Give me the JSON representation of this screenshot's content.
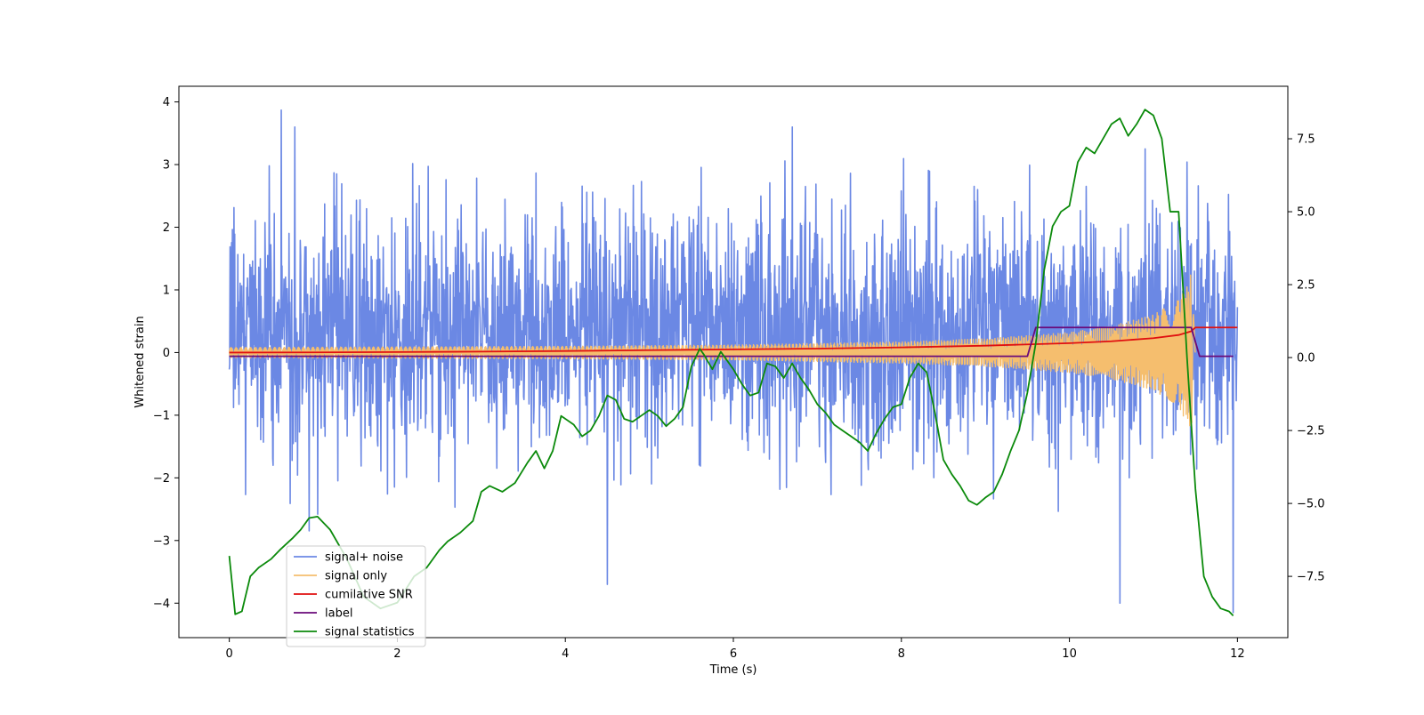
{
  "chart_data": {
    "type": "line",
    "title": "",
    "xlabel": "Time (s)",
    "ylabel": "Whitened strain",
    "y2label": "",
    "xlim": [
      -0.6,
      12.6
    ],
    "ylim": [
      -4.55,
      4.25
    ],
    "y2lim": [
      -9.6,
      9.3
    ],
    "xticks": [
      0,
      2,
      4,
      6,
      8,
      10,
      12
    ],
    "yticks": [
      -4,
      -3,
      -2,
      -1,
      0,
      1,
      2,
      3,
      4
    ],
    "y2ticks": [
      -7.5,
      -5.0,
      -2.5,
      0.0,
      2.5,
      5.0,
      7.5
    ],
    "grid": false,
    "legend_position": "lower-left",
    "series": [
      {
        "name": "signal+ noise",
        "color": "#6b88e4",
        "axis": "left",
        "kind": "noise",
        "x_range": [
          0,
          12
        ],
        "noise_std": 0.95,
        "noise_mean": 0.35,
        "notable_peaks": [
          [
            0.62,
            3.87
          ],
          [
            0.78,
            3.6
          ],
          [
            6.7,
            3.6
          ],
          [
            10.9,
            3.25
          ],
          [
            4.5,
            -3.7
          ],
          [
            10.6,
            -4.0
          ],
          [
            11.95,
            -4.15
          ]
        ]
      },
      {
        "name": "signal only",
        "color": "#f5be6e",
        "axis": "left",
        "kind": "chirp",
        "x_range": [
          0,
          11.5
        ],
        "merger_time": 11.5,
        "envelope": [
          [
            0,
            0.08
          ],
          [
            2,
            0.09
          ],
          [
            4,
            0.1
          ],
          [
            6,
            0.12
          ],
          [
            8,
            0.17
          ],
          [
            9,
            0.22
          ],
          [
            10,
            0.32
          ],
          [
            10.5,
            0.42
          ],
          [
            11,
            0.6
          ],
          [
            11.3,
            0.85
          ],
          [
            11.45,
            1.3
          ],
          [
            11.5,
            0.0
          ]
        ]
      },
      {
        "name": "cumilative SNR",
        "color": "#e01010",
        "axis": "left",
        "kind": "line",
        "x": [
          0,
          1,
          2,
          3,
          4,
          5,
          6,
          7,
          8,
          9,
          10,
          10.5,
          11,
          11.3,
          11.45,
          11.5,
          12
        ],
        "values": [
          0.0,
          0.003,
          0.008,
          0.015,
          0.025,
          0.038,
          0.05,
          0.063,
          0.082,
          0.11,
          0.15,
          0.18,
          0.23,
          0.28,
          0.34,
          0.4,
          0.4
        ]
      },
      {
        "name": "label",
        "color": "#6a0a7a",
        "axis": "left",
        "kind": "line",
        "x": [
          0,
          9.5,
          9.6,
          11.45,
          11.55,
          11.95
        ],
        "values": [
          -0.06,
          -0.06,
          0.4,
          0.4,
          -0.06,
          -0.06
        ]
      },
      {
        "name": "signal statistics",
        "color": "#0b8a0b",
        "axis": "right",
        "kind": "line",
        "x": [
          0,
          0.07,
          0.15,
          0.25,
          0.35,
          0.5,
          0.6,
          0.75,
          0.85,
          0.95,
          1.05,
          1.2,
          1.4,
          1.6,
          1.8,
          2.0,
          2.2,
          2.35,
          2.5,
          2.6,
          2.75,
          2.9,
          3.0,
          3.1,
          3.25,
          3.4,
          3.55,
          3.65,
          3.75,
          3.85,
          3.95,
          4.1,
          4.2,
          4.3,
          4.4,
          4.5,
          4.6,
          4.7,
          4.8,
          4.9,
          5.0,
          5.1,
          5.2,
          5.3,
          5.4,
          5.5,
          5.6,
          5.65,
          5.75,
          5.85,
          6.0,
          6.1,
          6.2,
          6.3,
          6.4,
          6.5,
          6.6,
          6.7,
          6.8,
          6.9,
          7.0,
          7.1,
          7.2,
          7.3,
          7.4,
          7.5,
          7.6,
          7.7,
          7.8,
          7.9,
          8.0,
          8.1,
          8.2,
          8.3,
          8.4,
          8.5,
          8.6,
          8.7,
          8.8,
          8.9,
          9.0,
          9.1,
          9.2,
          9.3,
          9.4,
          9.5,
          9.6,
          9.7,
          9.8,
          9.9,
          10.0,
          10.1,
          10.2,
          10.3,
          10.4,
          10.5,
          10.6,
          10.7,
          10.8,
          10.9,
          11.0,
          11.1,
          11.2,
          11.3,
          11.4,
          11.5,
          11.6,
          11.7,
          11.8,
          11.9,
          11.95
        ],
        "values": [
          -6.8,
          -8.8,
          -8.7,
          -7.5,
          -7.2,
          -6.9,
          -6.6,
          -6.2,
          -5.9,
          -5.5,
          -5.45,
          -5.9,
          -6.9,
          -8.2,
          -8.6,
          -8.4,
          -7.5,
          -7.2,
          -6.6,
          -6.3,
          -6.0,
          -5.6,
          -4.6,
          -4.4,
          -4.6,
          -4.3,
          -3.6,
          -3.2,
          -3.8,
          -3.2,
          -2.0,
          -2.3,
          -2.7,
          -2.5,
          -2.0,
          -1.3,
          -1.45,
          -2.1,
          -2.2,
          -2.0,
          -1.8,
          -2.0,
          -2.35,
          -2.1,
          -1.7,
          -0.3,
          0.3,
          0.1,
          -0.4,
          0.2,
          -0.4,
          -0.9,
          -1.3,
          -1.2,
          -0.2,
          -0.3,
          -0.7,
          -0.2,
          -0.7,
          -1.1,
          -1.6,
          -1.9,
          -2.3,
          -2.5,
          -2.7,
          -2.9,
          -3.2,
          -2.6,
          -2.1,
          -1.7,
          -1.6,
          -0.7,
          -0.2,
          -0.5,
          -1.9,
          -3.5,
          -4.0,
          -4.4,
          -4.9,
          -5.05,
          -4.8,
          -4.6,
          -4.0,
          -3.2,
          -2.5,
          -1.2,
          0.5,
          3.0,
          4.5,
          5.0,
          5.2,
          6.7,
          7.2,
          7.0,
          7.5,
          8.0,
          8.2,
          7.6,
          8.0,
          8.5,
          8.3,
          7.5,
          5.0,
          5.0,
          0.0,
          -4.5,
          -7.5,
          -8.2,
          -8.6,
          -8.7,
          -8.85
        ]
      }
    ]
  }
}
